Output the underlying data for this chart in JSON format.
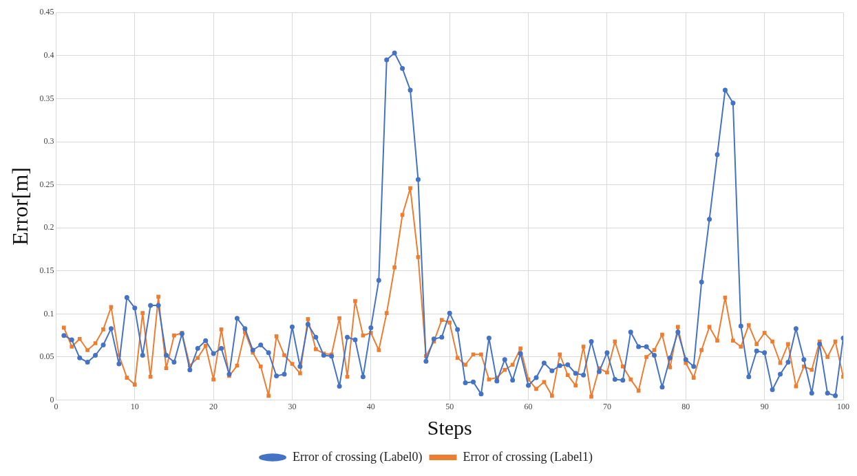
{
  "chart_data": {
    "type": "line",
    "xlabel": "Steps",
    "ylabel": "Error[m]",
    "xlim": [
      0,
      100
    ],
    "xticks": [
      0,
      10,
      20,
      30,
      40,
      50,
      60,
      70,
      80,
      90,
      100
    ],
    "ylim": [
      0,
      0.45
    ],
    "yticks": [
      0,
      0.05,
      0.1,
      0.15,
      0.2,
      0.25,
      0.3,
      0.35,
      0.4,
      0.45
    ],
    "grid": true,
    "legend": "bottom",
    "line_style": "solid",
    "x": [
      1,
      2,
      3,
      4,
      5,
      6,
      7,
      8,
      9,
      10,
      11,
      12,
      13,
      14,
      15,
      16,
      17,
      18,
      19,
      20,
      21,
      22,
      23,
      24,
      25,
      26,
      27,
      28,
      29,
      30,
      31,
      32,
      33,
      34,
      35,
      36,
      37,
      38,
      39,
      40,
      41,
      42,
      43,
      44,
      45,
      46,
      47,
      48,
      49,
      50,
      51,
      52,
      53,
      54,
      55,
      56,
      57,
      58,
      59,
      60,
      61,
      62,
      63,
      64,
      65,
      66,
      67,
      68,
      69,
      70,
      71,
      72,
      73,
      74,
      75,
      76,
      77,
      78,
      79,
      80,
      81,
      82,
      83,
      84,
      85,
      86,
      87,
      88,
      89,
      90,
      91,
      92,
      93,
      94,
      95,
      96,
      97,
      98,
      99,
      100
    ],
    "series": [
      {
        "name": "Error of crossing (Label0)",
        "color": "#4472c4",
        "marker": "circle",
        "values": [
          0.075,
          0.07,
          0.049,
          0.044,
          0.052,
          0.064,
          0.083,
          0.042,
          0.119,
          0.107,
          0.052,
          0.11,
          0.11,
          0.052,
          0.044,
          0.077,
          0.035,
          0.06,
          0.069,
          0.054,
          0.06,
          0.03,
          0.095,
          0.083,
          0.058,
          0.064,
          0.055,
          0.028,
          0.03,
          0.085,
          0.039,
          0.088,
          0.073,
          0.052,
          0.051,
          0.016,
          0.073,
          0.07,
          0.027,
          0.084,
          0.139,
          0.395,
          0.403,
          0.385,
          0.36,
          0.256,
          0.045,
          0.071,
          0.073,
          0.101,
          0.082,
          0.02,
          0.021,
          0.007,
          0.072,
          0.022,
          0.047,
          0.023,
          0.054,
          0.017,
          0.026,
          0.043,
          0.034,
          0.04,
          0.041,
          0.031,
          0.029,
          0.068,
          0.033,
          0.055,
          0.024,
          0.023,
          0.079,
          0.062,
          0.062,
          0.052,
          0.015,
          0.049,
          0.079,
          0.047,
          0.039,
          0.137,
          0.21,
          0.285,
          0.36,
          0.345,
          0.086,
          0.027,
          0.057,
          0.055,
          0.012,
          0.03,
          0.044,
          0.083,
          0.047,
          0.008,
          0.065,
          0.008,
          0.005,
          0.072
        ]
      },
      {
        "name": "Error of crossing (Label1)",
        "color": "#ed7d31",
        "marker": "square",
        "values": [
          0.084,
          0.062,
          0.071,
          0.058,
          0.066,
          0.082,
          0.108,
          0.052,
          0.026,
          0.018,
          0.101,
          0.027,
          0.12,
          0.037,
          0.075,
          0.078,
          0.04,
          0.049,
          0.063,
          0.024,
          0.082,
          0.028,
          0.04,
          0.079,
          0.055,
          0.039,
          0.005,
          0.074,
          0.052,
          0.042,
          0.031,
          0.094,
          0.059,
          0.054,
          0.053,
          0.095,
          0.027,
          0.115,
          0.075,
          0.078,
          0.058,
          0.101,
          0.154,
          0.215,
          0.246,
          0.166,
          0.051,
          0.068,
          0.093,
          0.09,
          0.049,
          0.041,
          0.053,
          0.053,
          0.024,
          0.026,
          0.035,
          0.041,
          0.06,
          0.024,
          0.013,
          0.021,
          0.005,
          0.053,
          0.029,
          0.017,
          0.062,
          0.004,
          0.037,
          0.032,
          0.068,
          0.039,
          0.024,
          0.011,
          0.05,
          0.058,
          0.076,
          0.038,
          0.085,
          0.043,
          0.026,
          0.058,
          0.085,
          0.069,
          0.119,
          0.069,
          0.062,
          0.087,
          0.065,
          0.078,
          0.068,
          0.043,
          0.065,
          0.016,
          0.039,
          0.035,
          0.068,
          0.05,
          0.068,
          0.027
        ]
      }
    ]
  }
}
